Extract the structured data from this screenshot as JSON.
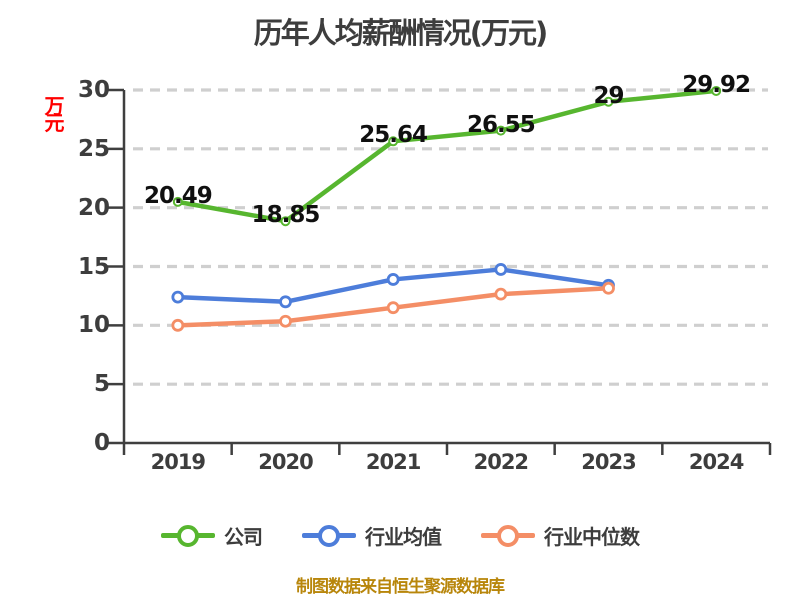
{
  "title": "历年人均薪酬情况(万元)",
  "y_axis_unit_label": "万元",
  "footer": "制图数据来自恒生聚源数据库",
  "colors": {
    "company_green": "#57b62f",
    "industry_avg_blue": "#4d7dda",
    "industry_median_orange": "#f48e66",
    "axis": "#3f3f3f",
    "gridline": "#cfcfcf",
    "tick_label": "#3d3d3d",
    "data_label": "#101010",
    "unit_label_red": "#ff0000",
    "footer_gold": "#b8860b",
    "background": "#ffffff"
  },
  "chart_data": {
    "type": "line",
    "title": "历年人均薪酬情况(万元)",
    "categories": [
      "2019",
      "2020",
      "2021",
      "2022",
      "2023",
      "2024"
    ],
    "series": [
      {
        "name": "公司",
        "color": "#57b62f",
        "values": [
          20.49,
          18.85,
          25.64,
          26.55,
          29,
          29.92
        ],
        "point_labels": [
          "20.49",
          "18.85",
          "25.64",
          "26.55",
          "29",
          "29.92"
        ],
        "marker": {
          "radius": 4,
          "ring": 2
        }
      },
      {
        "name": "行业均值",
        "color": "#4d7dda",
        "values": [
          12.4,
          12.0,
          13.9,
          14.75,
          13.4
        ],
        "point_labels": [],
        "marker": {
          "radius": 5,
          "ring": 2.8
        }
      },
      {
        "name": "行业中位数",
        "color": "#f48e66",
        "values": [
          10.0,
          10.35,
          11.5,
          12.65,
          13.15
        ],
        "point_labels": [],
        "marker": {
          "radius": 5,
          "ring": 2.8
        }
      }
    ],
    "ylim": [
      0,
      30
    ],
    "yticks": [
      0,
      5,
      10,
      15,
      20,
      25,
      30
    ],
    "grid": "horizontal-dashed",
    "legend_position": "bottom"
  }
}
